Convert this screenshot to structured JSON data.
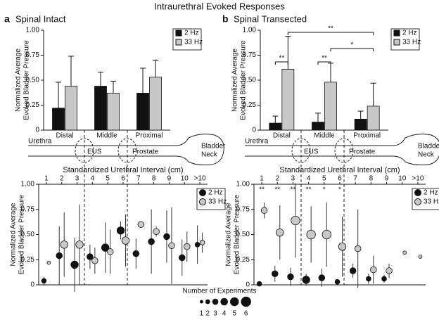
{
  "figure_title": "Intraurethral Evoked Responses",
  "panels": [
    {
      "label": "a",
      "title": "Spinal Intact"
    },
    {
      "label": "b",
      "title": "Spinal Transected"
    }
  ],
  "diagrams": [
    {
      "urethra": "Urethra",
      "eus": "EUS",
      "prostate": "Prostate",
      "bladder_neck": [
        "Bladder",
        "Neck"
      ]
    },
    {
      "urethra": "Urethra",
      "eus": "EUS",
      "prostate": "Prostate",
      "bladder_neck": [
        "Bladder",
        "Neck"
      ]
    }
  ],
  "size_legend": {
    "title": "Number of Experiments",
    "sizes": [
      1,
      2,
      3,
      4,
      5,
      6
    ]
  },
  "chart_data": [
    {
      "type": "bar",
      "ylabel": [
        "Normalized Average",
        "Evoked Bladder Pressure"
      ],
      "categories": [
        "Distal",
        "Middle",
        "Proximal"
      ],
      "series": [
        {
          "name": "2 Hz",
          "color": "#111111",
          "values": [
            0.22,
            0.44,
            0.37
          ],
          "errors": [
            0.26,
            0.14,
            0.25
          ]
        },
        {
          "name": "33 Hz",
          "color": "#c8c8c8",
          "values": [
            0.44,
            0.37,
            0.53
          ],
          "errors": [
            0.3,
            0.12,
            0.17
          ]
        }
      ],
      "ylim": [
        0,
        1
      ],
      "yticks": [
        0,
        0.25,
        {
          "value": 0.5,
          "label": "0.50"
        },
        0.75,
        {
          "value": 1,
          "label": "1.00"
        }
      ],
      "legend": "upper right"
    },
    {
      "type": "bar",
      "ylabel": [
        "Normalized Average",
        "Evoked Bladder Pressure"
      ],
      "categories": [
        "Distal",
        "Middle",
        "Proximal"
      ],
      "series": [
        {
          "name": "2 Hz",
          "color": "#111111",
          "values": [
            0.07,
            0.08,
            0.11
          ],
          "errors": [
            0.07,
            0.09,
            0.08
          ]
        },
        {
          "name": "33 Hz",
          "color": "#c8c8c8",
          "values": [
            0.61,
            0.48,
            0.24
          ],
          "errors": [
            0.33,
            0.19,
            0.23
          ]
        }
      ],
      "ylim": [
        0,
        1
      ],
      "yticks": [
        0,
        0.25,
        {
          "value": 0.5,
          "label": "0.50"
        },
        0.75,
        {
          "value": 1,
          "label": "1.00"
        }
      ],
      "annotations": [
        "**",
        "**",
        "**",
        "*"
      ],
      "legend": "upper right"
    },
    {
      "type": "scatter",
      "xlabel": "Standardized Urethral Interval (cm)",
      "ylabel": [
        "Normalized Average",
        "Evoked Bladder Pressure"
      ],
      "categories": [
        "1",
        "2",
        "3",
        "4",
        "5",
        "6",
        "7",
        "8",
        "9",
        "10",
        ">10"
      ],
      "series": [
        {
          "name": "2 Hz",
          "color": "#111111",
          "values": [
            0.04,
            0.29,
            0.2,
            0.28,
            0.37,
            0.54,
            0.31,
            0.43,
            0.48,
            0.27,
            0.4
          ],
          "errors": [
            0.04,
            0.29,
            0.27,
            0.12,
            0.25,
            0.09,
            0.15,
            0.32,
            0.26,
            0.18,
            0.19
          ],
          "sizes": [
            2,
            3,
            4,
            3,
            4,
            4,
            3,
            3,
            3,
            3,
            2
          ]
        },
        {
          "name": "33 Hz",
          "color": "#c8c8c8",
          "values": [
            0.22,
            0.4,
            0.4,
            0.24,
            0.33,
            0.44,
            0.6,
            0.53,
            0.39,
            0.38,
            0.42
          ],
          "errors": [
            null,
            0.32,
            0.4,
            0.13,
            0.22,
            0.26,
            0.03,
            0.05,
            0.38,
            0.15,
            0.1
          ],
          "sizes": [
            1,
            4,
            4,
            3,
            3,
            4,
            3,
            3,
            3,
            3,
            2
          ]
        }
      ],
      "ylim": [
        0,
        1
      ],
      "yticks": [
        0,
        0.25,
        {
          "value": 0.5,
          "label": "0.50"
        },
        0.75,
        {
          "value": 1,
          "label": "1.00"
        }
      ],
      "legend": "upper right"
    },
    {
      "type": "scatter",
      "xlabel": "Standardized Urethral Interval (cm)",
      "ylabel": [
        "Normalized Average",
        "Evoked Bladder Pressure"
      ],
      "categories": [
        "1",
        "2",
        "3",
        "4",
        "5",
        "6",
        "7",
        "8",
        "9",
        "10",
        ">10"
      ],
      "series": [
        {
          "name": "2 Hz",
          "color": "#111111",
          "values": [
            0.01,
            0.11,
            0.08,
            0.05,
            0.07,
            0.03,
            0.14,
            0.06,
            0.06,
            null,
            null
          ],
          "errors": [
            null,
            0.08,
            0.09,
            0.06,
            0.09,
            null,
            0.07,
            0.05,
            0.04,
            null,
            null
          ],
          "sizes": [
            2,
            3,
            3,
            4,
            3,
            2,
            3,
            2,
            2,
            null,
            null
          ]
        },
        {
          "name": "33 Hz",
          "color": "#c8c8c8",
          "values": [
            0.74,
            0.52,
            0.64,
            0.5,
            0.5,
            0.38,
            0.36,
            0.15,
            0.14,
            0.32,
            0.28
          ],
          "errors": [
            0.08,
            0.27,
            0.37,
            0.28,
            0.32,
            0.3,
            0.39,
            0.14,
            0.07,
            null,
            null
          ],
          "sizes": [
            3,
            4,
            5,
            5,
            5,
            4,
            3,
            3,
            3,
            1,
            1
          ]
        }
      ],
      "significance": [
        "**",
        "**",
        "**",
        "**",
        "*",
        "*",
        null,
        null,
        null,
        null,
        null
      ],
      "ylim": [
        0,
        1
      ],
      "yticks": [
        0,
        0.25,
        {
          "value": 0.5,
          "label": "0.50"
        },
        0.75,
        {
          "value": 1,
          "label": "1.00"
        }
      ],
      "legend": "upper right"
    }
  ]
}
